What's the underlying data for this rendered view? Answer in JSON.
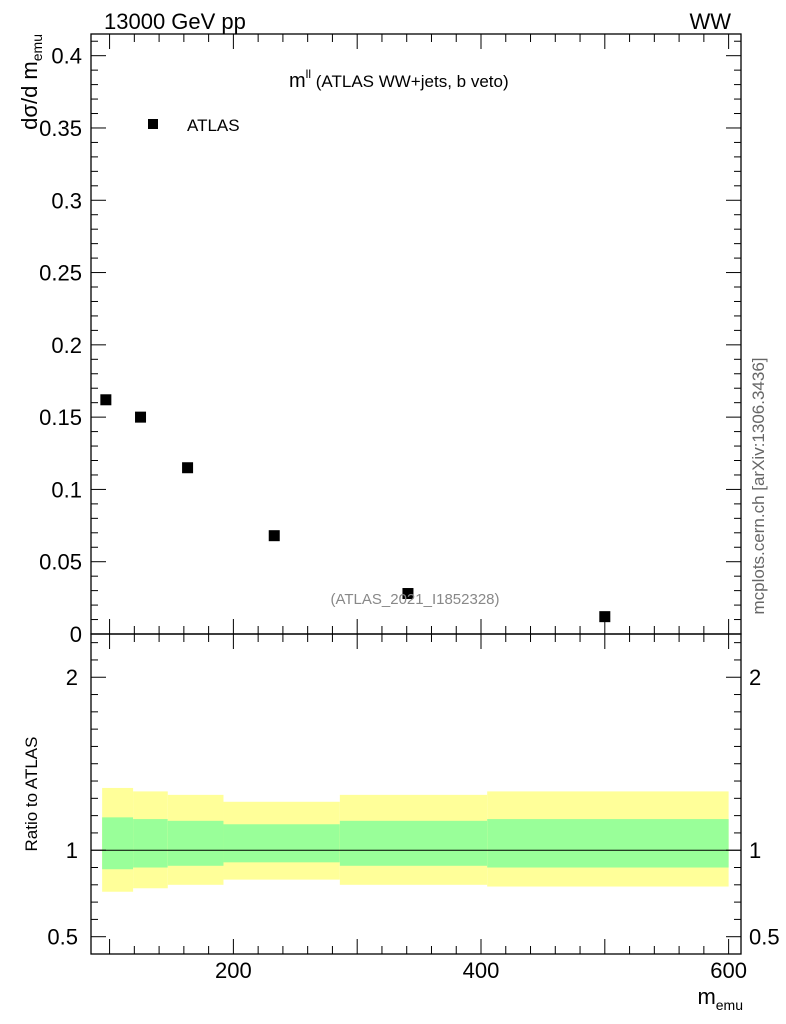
{
  "header": {
    "energy_label": "13000 GeV pp",
    "process_label": "WW"
  },
  "plot_title": {
    "main": "m",
    "superscript": "ll",
    "rest": " (ATLAS WW+jets, b veto)"
  },
  "legend": {
    "entries": [
      {
        "label": "ATLAS",
        "marker": "square"
      }
    ],
    "placement": "top-left"
  },
  "watermark": "(ATLAS_2021_I1852328)",
  "side_label": "mcplots.cern.ch [arXiv:1306.3436]",
  "axes": {
    "y_main": {
      "base": "dσ/d m",
      "subscript": "emu"
    },
    "y_ratio": "Ratio to ATLAS",
    "x": {
      "base": "m",
      "subscript": "emu"
    }
  },
  "colors": {
    "marker": "#000000",
    "band_inner": "#99ff99",
    "band_outer": "#ffff99"
  },
  "chart_data": [
    {
      "type": "scatter",
      "name": "main",
      "xlim": [
        85,
        610
      ],
      "ylim": [
        0,
        0.415
      ],
      "y_ticks": [
        {
          "value": 0,
          "label": "0"
        },
        {
          "value": 0.05,
          "label": "0.05"
        },
        {
          "value": 0.1,
          "label": "0.1"
        },
        {
          "value": 0.15,
          "label": "0.15"
        },
        {
          "value": 0.2,
          "label": "0.2"
        },
        {
          "value": 0.25,
          "label": "0.25"
        },
        {
          "value": 0.3,
          "label": "0.3"
        },
        {
          "value": 0.35,
          "label": "0.35"
        },
        {
          "value": 0.4,
          "label": "0.4"
        }
      ],
      "series": [
        {
          "name": "ATLAS",
          "x": [
            97,
            125,
            163,
            233,
            341,
            500
          ],
          "y": [
            0.162,
            0.15,
            0.115,
            0.068,
            0.028,
            0.012
          ]
        }
      ]
    },
    {
      "type": "area",
      "name": "ratio",
      "xlim": [
        85,
        610
      ],
      "ylim": [
        0.4,
        2.25
      ],
      "y_ticks": [
        {
          "value": 0.5,
          "label": "0.5"
        },
        {
          "value": 1,
          "label": "1"
        },
        {
          "value": 2,
          "label": "2"
        }
      ],
      "x_ticks": [
        {
          "value": 200,
          "label": "200"
        },
        {
          "value": 400,
          "label": "400"
        },
        {
          "value": 600,
          "label": "600"
        }
      ],
      "reference_line": 1,
      "bins": [
        {
          "lo": 94,
          "hi": 119,
          "outer": [
            0.76,
            1.36
          ],
          "inner": [
            0.89,
            1.19
          ]
        },
        {
          "lo": 119,
          "hi": 147,
          "outer": [
            0.78,
            1.34
          ],
          "inner": [
            0.9,
            1.18
          ]
        },
        {
          "lo": 147,
          "hi": 192,
          "outer": [
            0.8,
            1.32
          ],
          "inner": [
            0.91,
            1.17
          ]
        },
        {
          "lo": 192,
          "hi": 286,
          "outer": [
            0.83,
            1.28
          ],
          "inner": [
            0.93,
            1.15
          ]
        },
        {
          "lo": 286,
          "hi": 405,
          "outer": [
            0.8,
            1.32
          ],
          "inner": [
            0.91,
            1.17
          ]
        },
        {
          "lo": 405,
          "hi": 600,
          "outer": [
            0.79,
            1.34
          ],
          "inner": [
            0.9,
            1.18
          ]
        }
      ]
    }
  ]
}
